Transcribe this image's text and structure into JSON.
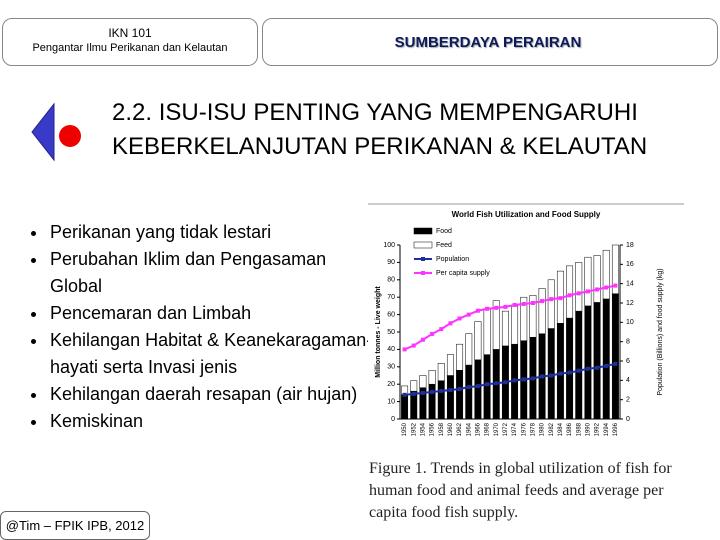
{
  "header": {
    "course_code": "IKN 101",
    "course_name": "Pengantar Ilmu Perikanan dan Kelautan",
    "topic": "SUMBERDAYA PERAIRAN"
  },
  "slide": {
    "title": "2.2. ISU-ISU PENTING YANG MEMPENGARUHI KEBERKELANJUTAN PERIKANAN & KELAUTAN",
    "bullets": [
      "Perikanan yang tidak lestari",
      "Perubahan Iklim dan Pengasaman Global",
      "Pencemaran dan Limbah",
      "Kehilangan Habitat & Keanekaragaman-hayati serta Invasi jenis",
      "Kehilangan daerah resapan (air hujan)",
      "Kemiskinan"
    ],
    "footer": "@Tim – FPIK IPB, 2012"
  },
  "figure": {
    "caption": "Figure 1. Trends in global utilization of fish for human food and animal feeds and average per capita food fish supply.",
    "chart_data": {
      "type": "bar",
      "stacked": true,
      "title": "World Fish Utilization and Food Supply",
      "categories": [
        "1950",
        "1952",
        "1954",
        "1956",
        "1958",
        "1960",
        "1962",
        "1964",
        "1966",
        "1968",
        "1970",
        "1972",
        "1974",
        "1976",
        "1978",
        "1980",
        "1982",
        "1984",
        "1986",
        "1988",
        "1990",
        "1992",
        "1994",
        "1996"
      ],
      "ylabel": "Million tonnes - Live weight",
      "y2label": "Population (Billions) and food supply (kg)",
      "series": [
        {
          "name": "Food",
          "type": "bar",
          "color": "#000000",
          "values": [
            14,
            16,
            18,
            20,
            22,
            25,
            28,
            31,
            34,
            37,
            40,
            42,
            43,
            45,
            47,
            49,
            52,
            55,
            58,
            62,
            65,
            67,
            69,
            72
          ]
        },
        {
          "name": "Feed",
          "type": "bar",
          "color": "#ffffff",
          "values": [
            5,
            6,
            7,
            8,
            10,
            12,
            15,
            18,
            22,
            26,
            28,
            20,
            22,
            25,
            24,
            26,
            28,
            30,
            30,
            28,
            28,
            27,
            28,
            28
          ]
        },
        {
          "name": "Population",
          "type": "line",
          "axis": "y2",
          "color": "#1f2f9a",
          "values": [
            2.5,
            2.6,
            2.7,
            2.8,
            2.9,
            3.0,
            3.1,
            3.3,
            3.4,
            3.6,
            3.7,
            3.8,
            4.0,
            4.1,
            4.2,
            4.4,
            4.5,
            4.7,
            4.8,
            5.0,
            5.2,
            5.3,
            5.5,
            5.7
          ]
        },
        {
          "name": "Per capita supply",
          "type": "line",
          "axis": "y2",
          "color": "#ff33ff",
          "values": [
            7.2,
            7.6,
            8.2,
            8.8,
            9.3,
            9.9,
            10.4,
            10.8,
            11.2,
            11.4,
            11.5,
            11.6,
            11.8,
            11.9,
            12.0,
            12.2,
            12.4,
            12.5,
            12.8,
            13.0,
            13.2,
            13.4,
            13.6,
            13.8
          ]
        }
      ],
      "ylim": [
        0,
        100
      ],
      "yticks": [
        0,
        10,
        20,
        30,
        40,
        50,
        60,
        70,
        80,
        90,
        100
      ],
      "y2lim": [
        0,
        18
      ],
      "y2ticks": [
        0,
        2,
        4,
        6,
        8,
        10,
        12,
        14,
        16,
        18
      ]
    }
  }
}
